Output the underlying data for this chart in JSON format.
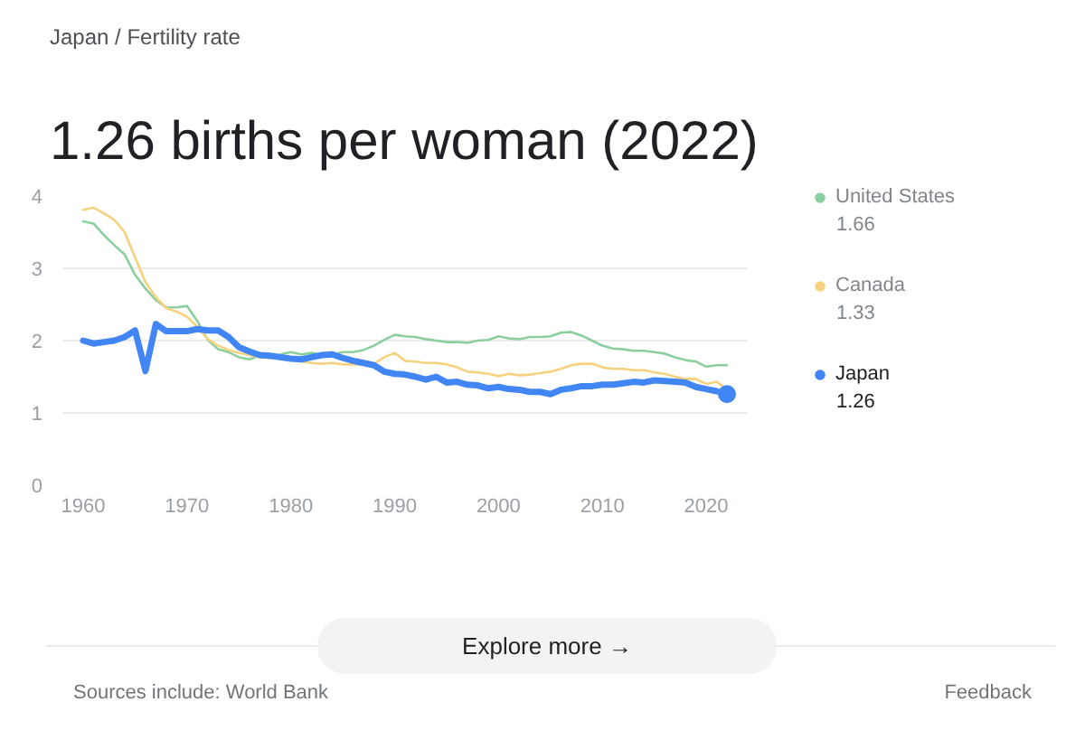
{
  "chart_data": {
    "type": "line",
    "subtitle": "Japan / Fertility rate",
    "title": "1.26 births per woman (2022)",
    "x": [
      1960,
      1961,
      1962,
      1963,
      1964,
      1965,
      1966,
      1967,
      1968,
      1969,
      1970,
      1971,
      1972,
      1973,
      1974,
      1975,
      1976,
      1977,
      1978,
      1979,
      1980,
      1981,
      1982,
      1983,
      1984,
      1985,
      1986,
      1987,
      1988,
      1989,
      1990,
      1991,
      1992,
      1993,
      1994,
      1995,
      1996,
      1997,
      1998,
      1999,
      2000,
      2001,
      2002,
      2003,
      2004,
      2005,
      2006,
      2007,
      2008,
      2009,
      2010,
      2011,
      2012,
      2013,
      2014,
      2015,
      2016,
      2017,
      2018,
      2019,
      2020,
      2021,
      2022
    ],
    "series": [
      {
        "name": "United States",
        "color": "#8ccf9f",
        "values": [
          3.65,
          3.62,
          3.46,
          3.32,
          3.19,
          2.91,
          2.72,
          2.56,
          2.46,
          2.46,
          2.48,
          2.27,
          2.01,
          1.88,
          1.84,
          1.77,
          1.74,
          1.79,
          1.76,
          1.81,
          1.84,
          1.81,
          1.83,
          1.8,
          1.81,
          1.84,
          1.84,
          1.87,
          1.93,
          2.01,
          2.08,
          2.06,
          2.05,
          2.02,
          2.0,
          1.98,
          1.98,
          1.97,
          2.0,
          2.01,
          2.06,
          2.03,
          2.02,
          2.05,
          2.05,
          2.06,
          2.11,
          2.12,
          2.07,
          2.0,
          1.93,
          1.89,
          1.88,
          1.86,
          1.86,
          1.84,
          1.82,
          1.77,
          1.73,
          1.71,
          1.64,
          1.66,
          1.66
        ]
      },
      {
        "name": "Canada",
        "color": "#f6d27e",
        "values": [
          3.81,
          3.84,
          3.76,
          3.67,
          3.5,
          3.15,
          2.81,
          2.6,
          2.45,
          2.4,
          2.33,
          2.19,
          2.02,
          1.93,
          1.87,
          1.83,
          1.8,
          1.77,
          1.76,
          1.76,
          1.74,
          1.71,
          1.69,
          1.68,
          1.69,
          1.67,
          1.67,
          1.67,
          1.68,
          1.77,
          1.83,
          1.72,
          1.71,
          1.69,
          1.69,
          1.67,
          1.63,
          1.57,
          1.56,
          1.54,
          1.51,
          1.54,
          1.52,
          1.53,
          1.55,
          1.57,
          1.61,
          1.66,
          1.68,
          1.68,
          1.63,
          1.61,
          1.61,
          1.59,
          1.59,
          1.56,
          1.54,
          1.5,
          1.47,
          1.47,
          1.4,
          1.43,
          1.33
        ]
      },
      {
        "name": "Japan",
        "color": "#4285f4",
        "values": [
          2.0,
          1.96,
          1.98,
          2.0,
          2.05,
          2.14,
          1.58,
          2.23,
          2.13,
          2.13,
          2.13,
          2.16,
          2.14,
          2.14,
          2.05,
          1.91,
          1.85,
          1.8,
          1.79,
          1.77,
          1.75,
          1.74,
          1.77,
          1.8,
          1.81,
          1.76,
          1.72,
          1.69,
          1.66,
          1.57,
          1.54,
          1.53,
          1.5,
          1.46,
          1.5,
          1.42,
          1.43,
          1.39,
          1.38,
          1.34,
          1.36,
          1.33,
          1.32,
          1.29,
          1.29,
          1.26,
          1.32,
          1.34,
          1.37,
          1.37,
          1.39,
          1.39,
          1.41,
          1.43,
          1.42,
          1.45,
          1.44,
          1.43,
          1.42,
          1.36,
          1.33,
          1.3,
          1.26
        ]
      },
      {
        "type": "scatter",
        "color": "#4285f4",
        "x": [
          2022
        ],
        "values": [
          1.26
        ]
      }
    ],
    "xlim": [
      1958,
      2024
    ],
    "ylim": [
      0,
      4
    ],
    "xticks": [
      1960,
      1970,
      1980,
      1990,
      2000,
      2010,
      2020
    ],
    "yticks": [
      0,
      1,
      2,
      3,
      4
    ],
    "grid": "y",
    "legend": "right",
    "annotations": [
      "1.66",
      "1.33",
      "1.26",
      "Explore more →",
      "Sources include: World Bank",
      "Feedback"
    ]
  }
}
